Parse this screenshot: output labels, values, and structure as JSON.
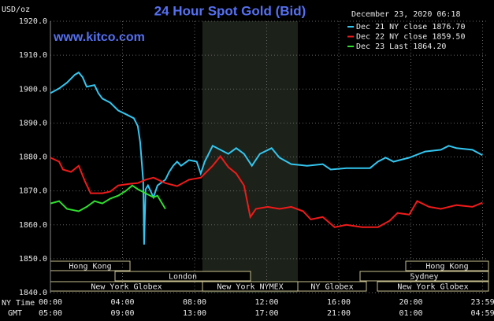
{
  "chart_data": {
    "type": "line",
    "title": "24 Hour Spot Gold (Bid)",
    "subtitle": "www.kitco.com",
    "timestamp": "December 23, 2020 06:18",
    "y_label": "USD/oz",
    "x_row_labels": [
      "NY Time",
      "GMT"
    ],
    "xlim": [
      0,
      24
    ],
    "ylim": [
      1840,
      1920
    ],
    "xticks": [
      {
        "value": 0,
        "label": "00:00"
      },
      {
        "value": 4,
        "label": "04:00"
      },
      {
        "value": 8,
        "label": "08:00"
      },
      {
        "value": 12,
        "label": "12:00"
      },
      {
        "value": 16,
        "label": "16:00"
      },
      {
        "value": 20,
        "label": "20:00"
      },
      {
        "value": 23.98,
        "label": "23:59"
      }
    ],
    "gmt_labels": [
      "05:00",
      "09:00",
      "13:00",
      "17:00",
      "21:00",
      "01:00",
      "04:59"
    ],
    "yticks": [
      {
        "value": 1840,
        "label": "1840.0"
      },
      {
        "value": 1850,
        "label": "1850.0"
      },
      {
        "value": 1860,
        "label": "1860.0"
      },
      {
        "value": 1870,
        "label": "1870.0"
      },
      {
        "value": 1880,
        "label": "1880.0"
      },
      {
        "value": 1890,
        "label": "1890.0"
      },
      {
        "value": 1900,
        "label": "1900.0"
      },
      {
        "value": 1910,
        "label": "1910.0"
      },
      {
        "value": 1920,
        "label": "1920.0"
      }
    ],
    "grid": true,
    "sessions": [
      "Hong Kong",
      "Hong Kong",
      "London",
      "Sydney",
      "New York Globex",
      "New York NYMEX",
      "NY Globex",
      "New York Globex"
    ],
    "series": [
      {
        "name": "Dec 21 NY close 1876.70",
        "color": "#33c6f0",
        "x": [
          0,
          0.48,
          0.92,
          1.35,
          1.57,
          1.79,
          2.01,
          2.45,
          2.66,
          2.88,
          3.32,
          3.76,
          4.19,
          4.63,
          4.85,
          4.98,
          5.15,
          5.2,
          5.28,
          5.41,
          5.72,
          5.94,
          6.38,
          6.59,
          6.81,
          7.03,
          7.25,
          7.69,
          8.12,
          8.34,
          8.56,
          8.78,
          9.0,
          9.43,
          9.87,
          10.31,
          10.74,
          11.18,
          11.62,
          12.27,
          12.71,
          13.36,
          14.24,
          15.11,
          15.55,
          16.42,
          17.73,
          18.17,
          18.6,
          19.04,
          19.91,
          20.79,
          21.66,
          22.1,
          22.53,
          23.41,
          23.97
        ],
        "values": [
          1898.8,
          1900.2,
          1901.9,
          1904.2,
          1904.9,
          1903.5,
          1900.7,
          1901.2,
          1898.8,
          1897.2,
          1896.0,
          1893.7,
          1892.6,
          1891.4,
          1889.1,
          1884.4,
          1872.8,
          1854.2,
          1870.5,
          1871.6,
          1868.1,
          1871.6,
          1873.3,
          1875.6,
          1877.4,
          1878.6,
          1877.4,
          1879.1,
          1878.6,
          1875.1,
          1878.6,
          1880.9,
          1883.3,
          1882.1,
          1880.9,
          1882.6,
          1880.9,
          1877.4,
          1880.9,
          1882.6,
          1879.8,
          1877.9,
          1877.4,
          1877.9,
          1876.3,
          1876.7,
          1876.7,
          1878.6,
          1879.8,
          1878.6,
          1879.8,
          1881.6,
          1882.1,
          1883.3,
          1882.6,
          1882.1,
          1880.5
        ]
      },
      {
        "name": "Dec 22 NY close 1859.50",
        "color": "#f01a1a",
        "x": [
          0,
          0.48,
          0.7,
          1.14,
          1.57,
          1.92,
          2.23,
          2.88,
          3.32,
          3.76,
          4.41,
          4.85,
          5.28,
          5.72,
          6.38,
          7.03,
          7.69,
          8.34,
          9.0,
          9.43,
          9.87,
          10.31,
          10.74,
          11.09,
          11.4,
          12.05,
          12.71,
          13.36,
          14.02,
          14.45,
          15.11,
          15.77,
          16.42,
          17.29,
          18.17,
          18.82,
          19.26,
          19.91,
          20.35,
          21.01,
          21.66,
          22.53,
          23.41,
          23.97
        ],
        "values": [
          1879.8,
          1878.6,
          1876.3,
          1875.6,
          1877.4,
          1872.8,
          1869.3,
          1869.3,
          1869.8,
          1871.6,
          1872.1,
          1872.3,
          1873.3,
          1873.9,
          1872.3,
          1871.4,
          1873.3,
          1873.9,
          1877.4,
          1880.2,
          1877.0,
          1875.1,
          1871.6,
          1862.3,
          1864.7,
          1865.3,
          1864.7,
          1865.3,
          1864.0,
          1861.6,
          1862.3,
          1859.3,
          1860.0,
          1859.3,
          1859.3,
          1861.2,
          1863.5,
          1863.0,
          1867.0,
          1865.3,
          1864.7,
          1865.8,
          1865.3,
          1866.5
        ]
      },
      {
        "name": "Dec 23 Last 1864.20",
        "color": "#2fe02f",
        "x": [
          0,
          0.48,
          0.92,
          1.57,
          2.01,
          2.45,
          2.88,
          3.32,
          3.76,
          4.19,
          4.54,
          4.85,
          5.28,
          5.72,
          5.94,
          6.38
        ],
        "values": [
          1866.3,
          1867.0,
          1864.7,
          1864.0,
          1865.3,
          1867.0,
          1866.3,
          1867.7,
          1868.6,
          1870.0,
          1871.6,
          1870.5,
          1869.3,
          1868.1,
          1868.6,
          1864.7
        ]
      }
    ]
  }
}
